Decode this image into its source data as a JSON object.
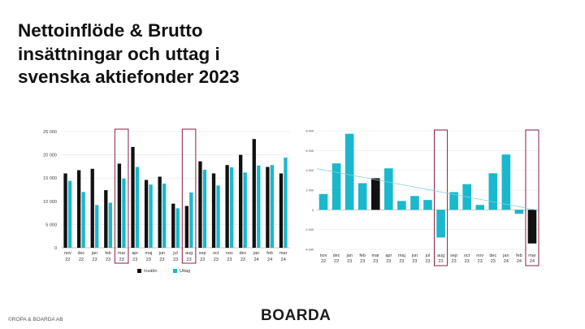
{
  "title_lines": [
    "Nettoinflöde & Brutto",
    "insättningar och uttag i",
    "svenska aktiefonder 2023"
  ],
  "footer": {
    "copyright": "©ROPA & BOARDA AB",
    "logo": "BOARDA"
  },
  "colors": {
    "black": "#111111",
    "teal": "#1ab8cc",
    "highlight": "#8b1c4a",
    "trend": "#7fd3df",
    "grid": "#e4e4e4"
  },
  "chart_data": [
    {
      "type": "bar",
      "categories": [
        [
          "nov",
          "22"
        ],
        [
          "dec",
          "22"
        ],
        [
          "jan",
          "23"
        ],
        [
          "feb",
          "23"
        ],
        [
          "mar",
          "23"
        ],
        [
          "apr",
          "23"
        ],
        [
          "maj",
          "23"
        ],
        [
          "jun",
          "23"
        ],
        [
          "jul",
          "23"
        ],
        [
          "aug",
          "23"
        ],
        [
          "sep",
          "23"
        ],
        [
          "oct",
          "23"
        ],
        [
          "nov",
          "23"
        ],
        [
          "dec",
          "23"
        ],
        [
          "jan",
          "24"
        ],
        [
          "feb",
          "24"
        ],
        [
          "mar",
          "24"
        ]
      ],
      "series": [
        {
          "name": "Insättn",
          "values": [
            16000,
            16700,
            17000,
            12400,
            18100,
            21700,
            14600,
            15300,
            9500,
            9000,
            18600,
            16000,
            17800,
            20000,
            23400,
            17400,
            16000
          ]
        },
        {
          "name": "Uttag",
          "values": [
            14400,
            12000,
            9200,
            9700,
            14900,
            17400,
            13600,
            13800,
            8500,
            11900,
            16800,
            13400,
            17300,
            16200,
            17700,
            17800,
            19400
          ]
        }
      ],
      "ylim": [
        0,
        25000
      ],
      "yticks": [
        "25 000",
        "20 000",
        "15 000",
        "10 000",
        "5 000",
        "0"
      ],
      "ytick_values": [
        25000,
        20000,
        15000,
        10000,
        5000,
        0
      ],
      "highlighted": [
        "aug 23",
        "mar 23"
      ],
      "legend": "bottom"
    },
    {
      "type": "bar",
      "categories": [
        [
          "nov",
          "22"
        ],
        [
          "dec",
          "22"
        ],
        [
          "jan",
          "23"
        ],
        [
          "feb",
          "23"
        ],
        [
          "mar",
          "23"
        ],
        [
          "apr",
          "23"
        ],
        [
          "maj",
          "23"
        ],
        [
          "jun",
          "23"
        ],
        [
          "jul",
          "23"
        ],
        [
          "aug",
          "23"
        ],
        [
          "sep",
          "23"
        ],
        [
          "oct",
          "23"
        ],
        [
          "nov",
          "23"
        ],
        [
          "dec",
          "23"
        ],
        [
          "jan",
          "24"
        ],
        [
          "feb",
          "24"
        ],
        [
          "mar",
          "24"
        ]
      ],
      "values": [
        1600,
        4700,
        7700,
        2700,
        3200,
        4200,
        900,
        1400,
        1000,
        -2800,
        1800,
        2600,
        500,
        3700,
        5600,
        -400,
        -3400
      ],
      "black_indices": [
        4,
        16
      ],
      "ylim": [
        -4000,
        8000
      ],
      "yticks": [
        "8 000",
        "6 000",
        "4 000",
        "2 000",
        "0",
        "-2 000",
        "-4 000"
      ],
      "ytick_values": [
        8000,
        6000,
        4000,
        2000,
        0,
        -2000,
        -4000
      ],
      "trendline": true,
      "highlighted": [
        "aug 23",
        "mar 24"
      ]
    }
  ]
}
